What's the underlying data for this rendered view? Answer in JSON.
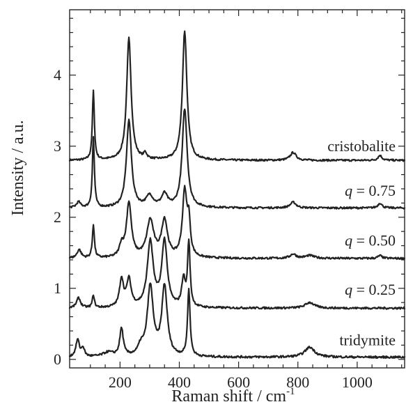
{
  "chart_data": {
    "type": "line",
    "title": "",
    "xlabel": "Raman shift / cm",
    "xlabel_superscript": "-1",
    "ylabel": "Intensity / a.u.",
    "xlim": [
      30,
      1160
    ],
    "ylim": [
      -0.12,
      4.92
    ],
    "xticks": [
      200,
      400,
      600,
      800,
      1000
    ],
    "yticks": [
      0,
      1,
      2,
      3,
      4
    ],
    "xticklabels": [
      "200",
      "400",
      "600",
      "800",
      "1000"
    ],
    "yticklabels": [
      "0",
      "1",
      "2",
      "3",
      "4"
    ],
    "grid": false,
    "series": [
      {
        "name": "cristobalite",
        "label_parts": {
          "var": "",
          "value": "cristobalite"
        },
        "offset": 2.8,
        "noise": 0.013,
        "peaks": [
          {
            "pos": 110,
            "amp": 0.97,
            "width": 4
          },
          {
            "pos": 230,
            "amp": 1.72,
            "width": 9
          },
          {
            "pos": 285,
            "amp": 0.08,
            "width": 6
          },
          {
            "pos": 418,
            "amp": 1.82,
            "width": 9
          },
          {
            "pos": 784,
            "amp": 0.11,
            "width": 12
          },
          {
            "pos": 1077,
            "amp": 0.07,
            "width": 8
          }
        ]
      },
      {
        "name": "q = 0.75",
        "label_parts": {
          "var": "q",
          "value": " = 0.75"
        },
        "offset": 2.13,
        "noise": 0.013,
        "peaks": [
          {
            "pos": 60,
            "amp": 0.08,
            "width": 8
          },
          {
            "pos": 110,
            "amp": 0.99,
            "width": 4
          },
          {
            "pos": 230,
            "amp": 1.23,
            "width": 10
          },
          {
            "pos": 300,
            "amp": 0.16,
            "width": 14
          },
          {
            "pos": 350,
            "amp": 0.18,
            "width": 12
          },
          {
            "pos": 418,
            "amp": 1.39,
            "width": 10
          },
          {
            "pos": 784,
            "amp": 0.08,
            "width": 12
          },
          {
            "pos": 1077,
            "amp": 0.07,
            "width": 8
          }
        ]
      },
      {
        "name": "q = 0.50",
        "label_parts": {
          "var": "q",
          "value": " = 0.50"
        },
        "offset": 1.42,
        "noise": 0.014,
        "peaks": [
          {
            "pos": 62,
            "amp": 0.12,
            "width": 8
          },
          {
            "pos": 110,
            "amp": 0.47,
            "width": 4
          },
          {
            "pos": 205,
            "amp": 0.16,
            "width": 8
          },
          {
            "pos": 230,
            "amp": 0.77,
            "width": 10
          },
          {
            "pos": 302,
            "amp": 0.52,
            "width": 14
          },
          {
            "pos": 350,
            "amp": 0.52,
            "width": 12
          },
          {
            "pos": 418,
            "amp": 0.92,
            "width": 9
          },
          {
            "pos": 432,
            "amp": 0.45,
            "width": 6
          },
          {
            "pos": 784,
            "amp": 0.06,
            "width": 12
          },
          {
            "pos": 840,
            "amp": 0.04,
            "width": 18
          },
          {
            "pos": 1077,
            "amp": 0.04,
            "width": 8
          }
        ]
      },
      {
        "name": "q = 0.25",
        "label_parts": {
          "var": "q",
          "value": " = 0.25"
        },
        "offset": 0.72,
        "noise": 0.014,
        "peaks": [
          {
            "pos": 60,
            "amp": 0.14,
            "width": 8
          },
          {
            "pos": 110,
            "amp": 0.18,
            "width": 4
          },
          {
            "pos": 205,
            "amp": 0.39,
            "width": 8
          },
          {
            "pos": 230,
            "amp": 0.38,
            "width": 9
          },
          {
            "pos": 302,
            "amp": 0.92,
            "width": 12
          },
          {
            "pos": 350,
            "amp": 0.93,
            "width": 11
          },
          {
            "pos": 414,
            "amp": 0.38,
            "width": 7
          },
          {
            "pos": 432,
            "amp": 0.91,
            "width": 5
          },
          {
            "pos": 840,
            "amp": 0.08,
            "width": 18
          }
        ]
      },
      {
        "name": "tridymite",
        "label_parts": {
          "var": "",
          "value": "tridymite"
        },
        "offset": 0.03,
        "noise": 0.015,
        "peaks": [
          {
            "pos": 57,
            "amp": 0.24,
            "width": 7
          },
          {
            "pos": 75,
            "amp": 0.12,
            "width": 6
          },
          {
            "pos": 160,
            "amp": 0.06,
            "width": 20
          },
          {
            "pos": 205,
            "amp": 0.39,
            "width": 7
          },
          {
            "pos": 270,
            "amp": 0.12,
            "width": 10
          },
          {
            "pos": 302,
            "amp": 0.98,
            "width": 12
          },
          {
            "pos": 350,
            "amp": 0.98,
            "width": 11
          },
          {
            "pos": 432,
            "amp": 0.95,
            "width": 5
          },
          {
            "pos": 840,
            "amp": 0.14,
            "width": 20
          }
        ]
      }
    ]
  }
}
